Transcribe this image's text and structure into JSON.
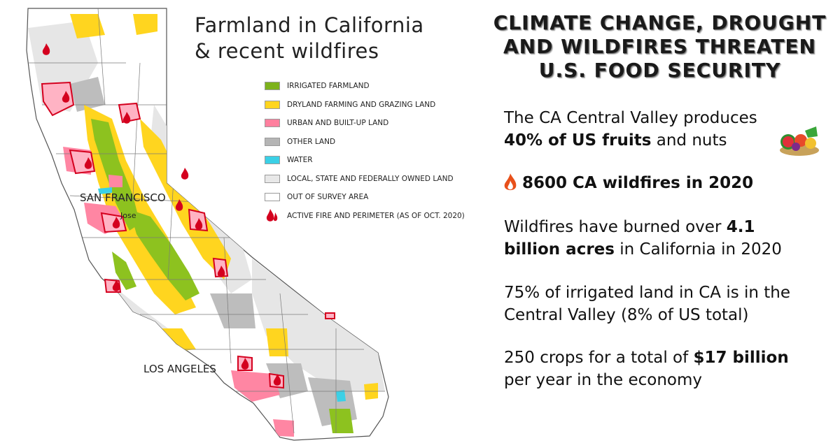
{
  "map": {
    "title_line1": "Farmland in California",
    "title_line2": "& recent wildfires",
    "legend": [
      {
        "label": "IRRIGATED FARMLAND",
        "color": "#7db21c"
      },
      {
        "label": "DRYLAND FARMING AND GRAZING LAND",
        "color": "#ffd51f"
      },
      {
        "label": "URBAN AND BUILT-UP LAND",
        "color": "#ff7f9e"
      },
      {
        "label": "OTHER LAND",
        "color": "#b5b5b5"
      },
      {
        "label": "WATER",
        "color": "#3bd0e6"
      },
      {
        "label": "LOCAL, STATE AND FEDERALLY OWNED LAND",
        "color": "#e8e8e8"
      },
      {
        "label": "OUT OF SURVEY AREA",
        "color": "#ffffff"
      },
      {
        "label": "ACTIVE FIRE AND PERIMETER (AS OF OCT. 2020)",
        "color": "#d4001e"
      }
    ],
    "cities": {
      "san_francisco": "SAN FRANCISCO",
      "san_jose": "Jose",
      "los_angeles": "LOS ANGELES"
    }
  },
  "headline": {
    "line1": "CLIMATE CHANGE, DROUGHT",
    "line2": "AND WILDFIRES THREATEN",
    "line3": "U.S. FOOD SECURITY"
  },
  "facts": {
    "f1": {
      "l1": "The CA Central Valley produces",
      "l2_bold": "40% of US fruits",
      "l2_rest": " and nuts",
      "icon": "fruit-basket-icon"
    },
    "f2": {
      "text": "8600 CA wildfires in 2020",
      "icon": "fire-icon"
    },
    "f3": {
      "l1_pre": "Wildfires have burned over ",
      "l1_bold": "4.1",
      "l2_bold": "billion acres",
      "l2_rest": " in California in 2020"
    },
    "f4": {
      "l1": "75% of irrigated land in CA is in the",
      "l2": "Central Valley (8% of US total)"
    },
    "f5": {
      "l1_pre": "250 crops for a total of ",
      "l1_bold": "$17 billion",
      "l2": "per year in the economy"
    }
  }
}
